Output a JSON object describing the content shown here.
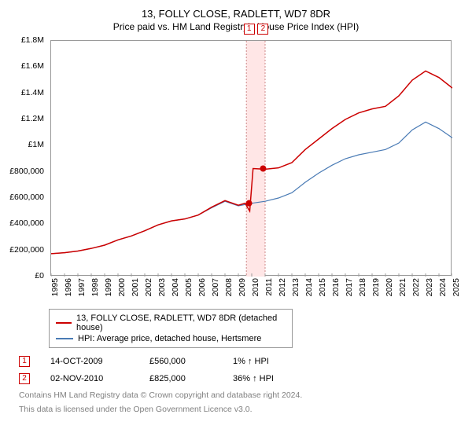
{
  "title": "13, FOLLY CLOSE, RADLETT, WD7 8DR",
  "subtitle": "Price paid vs. HM Land Registry's House Price Index (HPI)",
  "chart": {
    "type": "line",
    "ylim": [
      0,
      1800000
    ],
    "ytick_step": 200000,
    "y_ticks": [
      "£0",
      "£200,000",
      "£400,000",
      "£600,000",
      "£800,000",
      "£1M",
      "£1.2M",
      "£1.4M",
      "£1.6M",
      "£1.8M"
    ],
    "x_years": [
      "1995",
      "1996",
      "1997",
      "1998",
      "1999",
      "2000",
      "2001",
      "2002",
      "2003",
      "2004",
      "2005",
      "2006",
      "2007",
      "2008",
      "2009",
      "2010",
      "2011",
      "2012",
      "2013",
      "2014",
      "2015",
      "2016",
      "2017",
      "2018",
      "2019",
      "2020",
      "2021",
      "2022",
      "2023",
      "2024",
      "2025"
    ],
    "background_color": "#ffffff",
    "grid_color": "#999999",
    "series": [
      {
        "name": "property",
        "label": "13, FOLLY CLOSE, RADLETT, WD7 8DR (detached house)",
        "color": "#cc0000",
        "width": 1.5,
        "points": [
          [
            0,
            175
          ],
          [
            1,
            182
          ],
          [
            2,
            195
          ],
          [
            3,
            215
          ],
          [
            4,
            240
          ],
          [
            5,
            280
          ],
          [
            6,
            310
          ],
          [
            7,
            350
          ],
          [
            8,
            395
          ],
          [
            9,
            425
          ],
          [
            10,
            440
          ],
          [
            11,
            470
          ],
          [
            12,
            530
          ],
          [
            13,
            580
          ],
          [
            14,
            545
          ],
          [
            14.5,
            560
          ],
          [
            14.85,
            500
          ],
          [
            15.1,
            825
          ],
          [
            16,
            820
          ],
          [
            17,
            830
          ],
          [
            18,
            870
          ],
          [
            19,
            970
          ],
          [
            20,
            1050
          ],
          [
            21,
            1130
          ],
          [
            22,
            1200
          ],
          [
            23,
            1250
          ],
          [
            24,
            1280
          ],
          [
            25,
            1300
          ],
          [
            26,
            1380
          ],
          [
            27,
            1500
          ],
          [
            28,
            1570
          ],
          [
            29,
            1520
          ],
          [
            30,
            1440
          ]
        ]
      },
      {
        "name": "hpi",
        "label": "HPI: Average price, detached house, Hertsmere",
        "color": "#4a7bb5",
        "width": 1.2,
        "points": [
          [
            0,
            175
          ],
          [
            1,
            182
          ],
          [
            2,
            195
          ],
          [
            3,
            215
          ],
          [
            4,
            240
          ],
          [
            5,
            280
          ],
          [
            6,
            310
          ],
          [
            7,
            350
          ],
          [
            8,
            395
          ],
          [
            9,
            425
          ],
          [
            10,
            440
          ],
          [
            11,
            470
          ],
          [
            12,
            525
          ],
          [
            13,
            575
          ],
          [
            14,
            540
          ],
          [
            15,
            560
          ],
          [
            16,
            575
          ],
          [
            17,
            600
          ],
          [
            18,
            640
          ],
          [
            19,
            720
          ],
          [
            20,
            790
          ],
          [
            21,
            850
          ],
          [
            22,
            900
          ],
          [
            23,
            930
          ],
          [
            24,
            950
          ],
          [
            25,
            970
          ],
          [
            26,
            1020
          ],
          [
            27,
            1120
          ],
          [
            28,
            1180
          ],
          [
            29,
            1130
          ],
          [
            30,
            1060
          ]
        ]
      }
    ],
    "markers": [
      {
        "num": "1",
        "year_index": 14.8,
        "color": "#cc0000",
        "point_value": 560
      },
      {
        "num": "2",
        "year_index": 15.85,
        "color": "#cc0000",
        "point_value": 825
      }
    ],
    "highlight_band": {
      "from": 14.6,
      "to": 16.0,
      "color": "#ffe6e6"
    }
  },
  "sales": [
    {
      "num": "1",
      "date": "14-OCT-2009",
      "price": "£560,000",
      "pct": "1% ↑ HPI",
      "color": "#cc0000"
    },
    {
      "num": "2",
      "date": "02-NOV-2010",
      "price": "£825,000",
      "pct": "36% ↑ HPI",
      "color": "#cc0000"
    }
  ],
  "footnote1": "Contains HM Land Registry data © Crown copyright and database right 2024.",
  "footnote2": "This data is licensed under the Open Government Licence v3.0."
}
